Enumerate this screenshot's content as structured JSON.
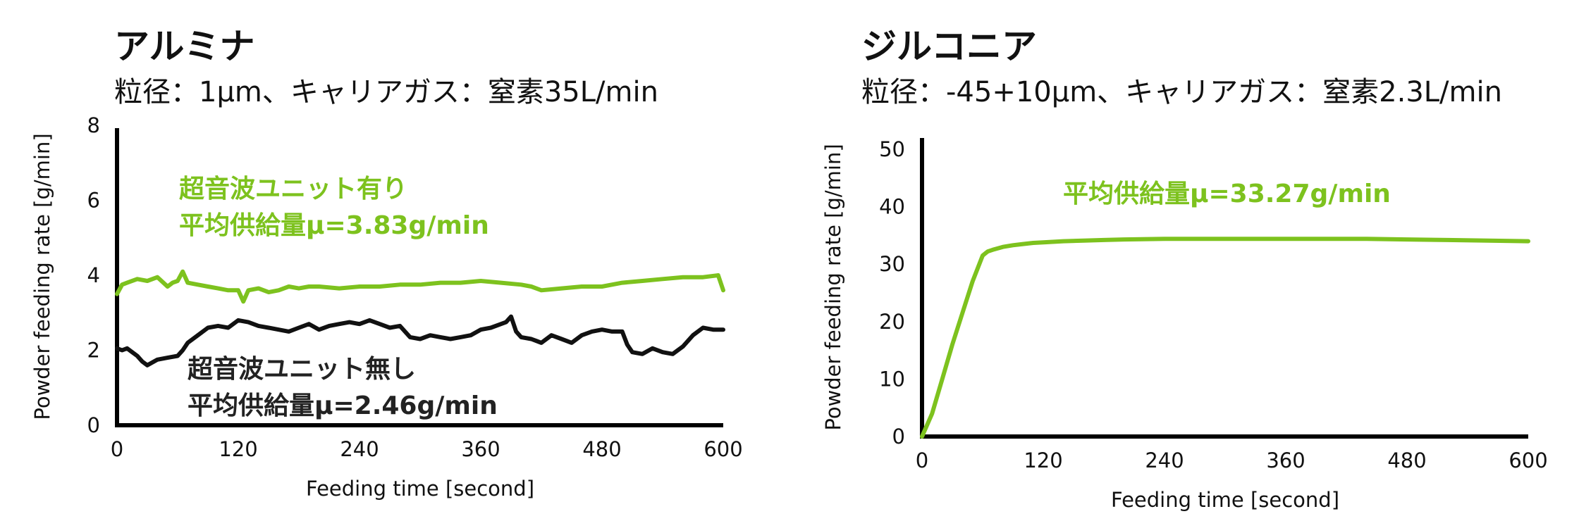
{
  "panels": [
    {
      "title": "アルミナ",
      "subtitle": "粒径：1μm、キャリアガス：窒素35L/min"
    },
    {
      "title": "ジルコニア",
      "subtitle": "粒径：-45+10μm、キャリアガス：窒素2.3L/min"
    }
  ],
  "chart_data": [
    {
      "type": "line",
      "xlabel": "Feeding time [second]",
      "ylabel": "Powder feeding rate [g/min]",
      "xlim": [
        0,
        600
      ],
      "ylim": [
        0,
        8
      ],
      "xticks": [
        "0",
        "120",
        "240",
        "360",
        "480",
        "600"
      ],
      "yticks": [
        "0",
        "2",
        "4",
        "6",
        "8"
      ],
      "annotations": [
        {
          "line1": "超音波ユニット有り",
          "line2": "平均供給量μ=3.83g/min",
          "color": "#7dc21e"
        },
        {
          "line1": "超音波ユニット無し",
          "line2": "平均供給量μ=2.46g/min",
          "color": "#111111"
        }
      ],
      "series": [
        {
          "color": "#7dc21e",
          "x": [
            0,
            5,
            10,
            20,
            30,
            40,
            50,
            55,
            60,
            65,
            70,
            80,
            90,
            100,
            110,
            120,
            125,
            130,
            140,
            150,
            160,
            170,
            180,
            190,
            200,
            220,
            240,
            260,
            280,
            300,
            320,
            340,
            360,
            380,
            400,
            410,
            420,
            440,
            460,
            480,
            500,
            520,
            540,
            560,
            580,
            595,
            600
          ],
          "y": [
            3.5,
            3.75,
            3.8,
            3.9,
            3.85,
            3.95,
            3.7,
            3.8,
            3.85,
            4.1,
            3.8,
            3.75,
            3.7,
            3.65,
            3.6,
            3.6,
            3.3,
            3.6,
            3.65,
            3.55,
            3.6,
            3.7,
            3.65,
            3.7,
            3.7,
            3.65,
            3.7,
            3.7,
            3.75,
            3.75,
            3.8,
            3.8,
            3.85,
            3.8,
            3.75,
            3.7,
            3.6,
            3.65,
            3.7,
            3.7,
            3.8,
            3.85,
            3.9,
            3.95,
            3.95,
            4.0,
            3.6
          ]
        },
        {
          "color": "#111111",
          "x": [
            0,
            5,
            10,
            15,
            20,
            25,
            30,
            40,
            50,
            60,
            65,
            70,
            80,
            90,
            100,
            110,
            120,
            130,
            140,
            150,
            160,
            170,
            180,
            190,
            200,
            210,
            220,
            230,
            240,
            250,
            260,
            270,
            280,
            290,
            300,
            310,
            320,
            330,
            340,
            350,
            360,
            370,
            380,
            385,
            390,
            395,
            400,
            410,
            420,
            430,
            440,
            450,
            460,
            470,
            480,
            490,
            500,
            505,
            510,
            520,
            530,
            540,
            550,
            560,
            570,
            580,
            590,
            600
          ],
          "y": [
            2.05,
            2.0,
            2.05,
            1.95,
            1.85,
            1.7,
            1.6,
            1.75,
            1.8,
            1.85,
            2.0,
            2.2,
            2.4,
            2.6,
            2.65,
            2.6,
            2.8,
            2.75,
            2.65,
            2.6,
            2.55,
            2.5,
            2.6,
            2.7,
            2.55,
            2.65,
            2.7,
            2.75,
            2.7,
            2.8,
            2.7,
            2.6,
            2.65,
            2.35,
            2.3,
            2.4,
            2.35,
            2.3,
            2.35,
            2.4,
            2.55,
            2.6,
            2.7,
            2.75,
            2.9,
            2.5,
            2.35,
            2.3,
            2.2,
            2.4,
            2.3,
            2.2,
            2.4,
            2.5,
            2.55,
            2.5,
            2.5,
            2.15,
            1.95,
            1.9,
            2.05,
            1.95,
            1.9,
            2.1,
            2.4,
            2.6,
            2.55,
            2.55
          ]
        }
      ]
    },
    {
      "type": "line",
      "xlabel": "Feeding time [second]",
      "ylabel": "Powder feeding rate [g/min]",
      "xlim": [
        0,
        600
      ],
      "ylim": [
        0,
        50
      ],
      "xticks": [
        "0",
        "120",
        "240",
        "360",
        "480",
        "600"
      ],
      "yticks": [
        "0",
        "10",
        "20",
        "30",
        "40",
        "50"
      ],
      "annotations": [
        {
          "line1": "平均供給量μ=33.27g/min",
          "color": "#7dc21e"
        }
      ],
      "series": [
        {
          "color": "#7dc21e",
          "x": [
            0,
            10,
            20,
            30,
            40,
            50,
            60,
            65,
            70,
            80,
            90,
            100,
            110,
            120,
            140,
            160,
            180,
            200,
            240,
            300,
            360,
            400,
            440,
            480,
            520,
            560,
            600
          ],
          "y": [
            0,
            4,
            10,
            16,
            21.5,
            27,
            31.5,
            32.2,
            32.5,
            33.0,
            33.3,
            33.5,
            33.7,
            33.8,
            34.0,
            34.1,
            34.2,
            34.3,
            34.4,
            34.4,
            34.4,
            34.4,
            34.4,
            34.3,
            34.2,
            34.1,
            34.0
          ]
        }
      ]
    }
  ]
}
